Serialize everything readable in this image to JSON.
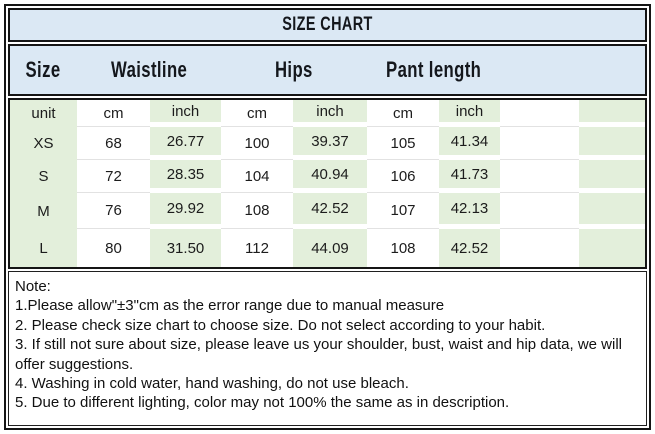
{
  "title": "SIZE CHART",
  "header": {
    "size": "Size",
    "waistline": "Waistline",
    "hips": "Hips",
    "pant_length": "Pant length"
  },
  "table": {
    "unit_row": [
      "unit",
      "cm",
      "inch",
      "cm",
      "inch",
      "cm",
      "inch"
    ],
    "rows": [
      {
        "size": "XS",
        "values": [
          "68",
          "26.77",
          "100",
          "39.37",
          "105",
          "41.34"
        ]
      },
      {
        "size": "S",
        "values": [
          "72",
          "28.35",
          "104",
          "40.94",
          "106",
          "41.73"
        ]
      },
      {
        "size": "M",
        "values": [
          "76",
          "29.92",
          "108",
          "42.52",
          "107",
          "42.13"
        ]
      },
      {
        "size": "L",
        "values": [
          "80",
          "31.50",
          "112",
          "44.09",
          "108",
          "42.52"
        ]
      }
    ]
  },
  "notes": {
    "label": "Note:",
    "items": [
      "1.Please allow\"±3\"cm as the error range due to manual measure",
      "2. Please check size chart to choose size. Do not select according to your habit.",
      "3. If still not sure about size, please leave us your shoulder, bust, waist and hip data, we will offer suggestions.",
      "4. Washing in cold water, hand washing, do not use bleach.",
      "5. Due to different lighting, color may not 100% the same as in description."
    ]
  },
  "colors": {
    "header_bg": "#dbe8f4",
    "green_cell_bg": "#e3efdb",
    "border_dark": "#151515",
    "text": "#1c1c1c"
  },
  "chart_data": {
    "type": "table",
    "title": "SIZE CHART",
    "column_groups": [
      "Size",
      "Waistline",
      "Hips",
      "Pant length"
    ],
    "columns": [
      "unit",
      "Waistline (cm)",
      "Waistline (inch)",
      "Hips (cm)",
      "Hips (inch)",
      "Pant length (cm)",
      "Pant length (inch)"
    ],
    "rows": [
      [
        "XS",
        68,
        26.77,
        100,
        39.37,
        105,
        41.34
      ],
      [
        "S",
        72,
        28.35,
        104,
        40.94,
        106,
        41.73
      ],
      [
        "M",
        76,
        29.92,
        108,
        42.52,
        107,
        42.13
      ],
      [
        "L",
        80,
        31.5,
        112,
        44.09,
        108,
        42.52
      ]
    ],
    "notes": [
      "1.Please allow\"±3\"cm as the error range due to manual measure",
      "2. Please check size chart to choose size. Do not select according to your habit.",
      "3. If still not sure about size, please leave us your shoulder, bust, waist and hip data, we will offer suggestions.",
      "4. Washing in cold water, hand washing, do not use bleach.",
      "5. Due to different lighting, color may not 100% the same as in description."
    ]
  }
}
